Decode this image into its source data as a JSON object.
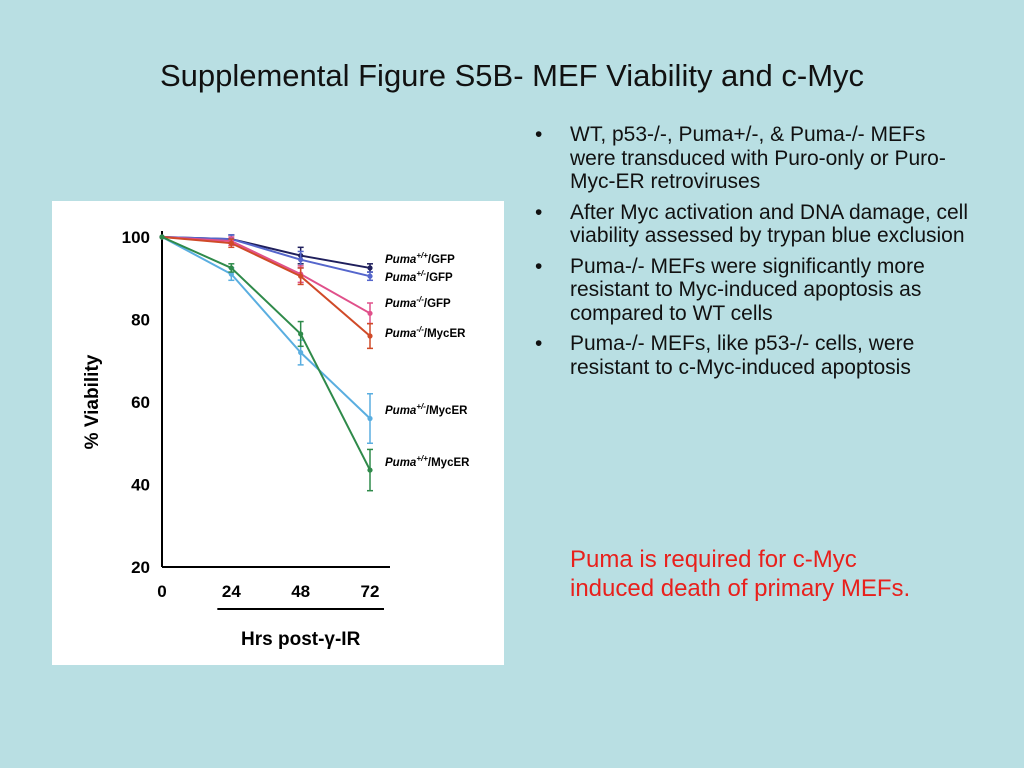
{
  "slide": {
    "title": "Supplemental Figure S5B- MEF Viability and c-Myc",
    "bullet_marker": "•",
    "bullets": [
      "WT, p53-/-, Puma+/-, & Puma-/- MEFs were transduced with Puro-only or Puro-Myc-ER retroviruses",
      "After Myc activation and DNA damage, cell viability assessed by trypan blue exclusion",
      "Puma-/- MEFs were significantly more resistant to Myc-induced apoptosis as compared to WT cells",
      "Puma-/- MEFs, like p53-/- cells, were resistant to c-Myc-induced apoptosis"
    ],
    "conclusion": "Puma is required for c-Myc induced death of primary MEFs.",
    "conclusion_color": "#e8201c",
    "background": "#b9dfe3"
  },
  "chart_data": {
    "type": "line",
    "title": "",
    "xlabel": "Hrs post-γ-IR",
    "ylabel": "% Viability",
    "x": [
      0,
      24,
      48,
      72
    ],
    "x_tick_labels": [
      "0",
      "24",
      "48",
      "72"
    ],
    "y_ticks": [
      20,
      40,
      60,
      80,
      100
    ],
    "ylim": [
      20,
      100
    ],
    "grid": false,
    "legend_placement": "right-of-series-ends",
    "series": [
      {
        "name": "+/+",
        "genotype": "Puma",
        "vector": "/GFP",
        "color": "#1f1f5c",
        "values": [
          100,
          99.5,
          95.5,
          92.5
        ],
        "errors": [
          0.5,
          1,
          2,
          1
        ]
      },
      {
        "name": "+/-",
        "genotype": "Puma",
        "vector": "/GFP",
        "color": "#5566cc",
        "values": [
          100,
          99.5,
          94.5,
          90.5
        ],
        "errors": [
          0.5,
          1,
          2,
          1
        ]
      },
      {
        "name": "-/-",
        "genotype": "Puma",
        "vector": "/GFP",
        "color": "#e0508a",
        "values": [
          100,
          99,
          91,
          81.5
        ],
        "errors": [
          0.5,
          1,
          2,
          2.5
        ]
      },
      {
        "name": "-/-",
        "genotype": "Puma",
        "vector": "/MycER",
        "color": "#d04a28",
        "values": [
          100,
          98.5,
          90.5,
          76
        ],
        "errors": [
          0.5,
          1,
          2,
          3
        ]
      },
      {
        "name": "+/-",
        "genotype": "Puma",
        "vector": "/MycER",
        "color": "#5aaee0",
        "values": [
          100,
          91,
          72,
          56
        ],
        "errors": [
          0.5,
          1.5,
          3,
          6
        ]
      },
      {
        "name": "+/+",
        "genotype": "Puma",
        "vector": "/MycER",
        "color": "#2f8a4a",
        "values": [
          100,
          92.5,
          76.5,
          43.5
        ],
        "errors": [
          0.5,
          1,
          3,
          5
        ]
      }
    ]
  }
}
